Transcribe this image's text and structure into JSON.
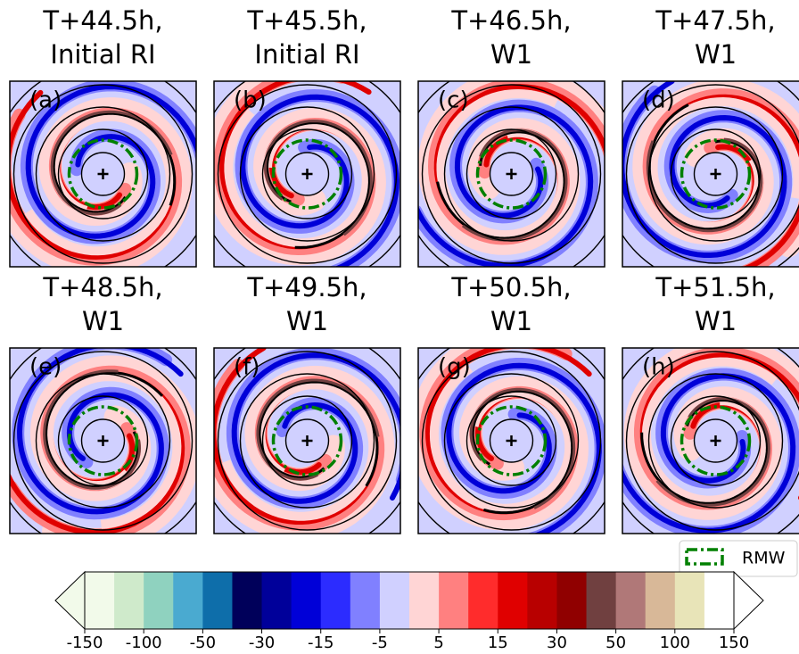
{
  "chart_data": {
    "type": "contour-panels",
    "panels": [
      {
        "label": "(a)",
        "title": [
          "T+44.5h,",
          "Initial RI"
        ]
      },
      {
        "label": "(b)",
        "title": [
          "T+45.5h,",
          "Initial RI"
        ]
      },
      {
        "label": "(c)",
        "title": [
          "T+46.5h,",
          "W1"
        ]
      },
      {
        "label": "(d)",
        "title": [
          "T+47.5h,",
          "W1"
        ]
      },
      {
        "label": "(e)",
        "title": [
          "T+48.5h,",
          "W1"
        ]
      },
      {
        "label": "(f)",
        "title": [
          "T+49.5h,",
          "W1"
        ]
      },
      {
        "label": "(g)",
        "title": [
          "T+50.5h,",
          "W1"
        ]
      },
      {
        "label": "(h)",
        "title": [
          "T+51.5h,",
          "W1"
        ]
      }
    ],
    "legend": {
      "label": "RMW",
      "color": "#008000"
    },
    "colorbar": {
      "ticks": [
        -150,
        -100,
        -50,
        -30,
        -15,
        -5,
        5,
        15,
        30,
        50,
        100,
        150
      ],
      "colors": [
        "#f2faea",
        "#cfeacb",
        "#8fd2bf",
        "#4aaad0",
        "#0e6eaa",
        "#00005a",
        "#00009a",
        "#0000d8",
        "#2c2cff",
        "#8080ff",
        "#d0d0ff",
        "#ffd5d5",
        "#ff8080",
        "#ff2c2c",
        "#e00000",
        "#b80000",
        "#900000",
        "#704040",
        "#b07878",
        "#d8b898",
        "#e8e4b8",
        "#ffffff"
      ]
    }
  }
}
